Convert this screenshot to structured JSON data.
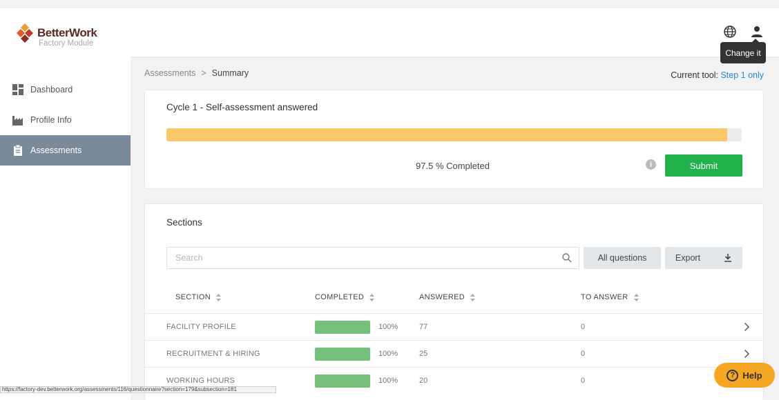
{
  "header": {
    "logo_title": "BetterWork",
    "logo_subtitle": "Factory Module",
    "globe_icon": "globe-icon",
    "user_icon": "user-icon",
    "tooltip": "Change it"
  },
  "sidebar": {
    "items": [
      {
        "label": "Dashboard",
        "icon": "dashboard-icon",
        "active": false
      },
      {
        "label": "Profile Info",
        "icon": "factory-icon",
        "active": false
      },
      {
        "label": "Assessments",
        "icon": "clipboard-icon",
        "active": true
      }
    ]
  },
  "breadcrumb": {
    "parent": "Assessments",
    "separator": ">",
    "current": "Summary"
  },
  "current_tool": {
    "label": "Current tool:",
    "value": "Step 1 only"
  },
  "summary": {
    "title": "Cycle 1 - Self-assessment answered",
    "progress_percent": 97.5,
    "completed_text": "97.5 % Completed",
    "submit_label": "Submit"
  },
  "sections": {
    "title": "Sections",
    "search_placeholder": "Search",
    "all_questions_label": "All questions",
    "export_label": "Export",
    "columns": [
      "SECTION",
      "COMPLETED",
      "ANSWERED",
      "TO ANSWER"
    ],
    "rows": [
      {
        "section": "FACILITY PROFILE",
        "completed_percent": 100,
        "completed_text": "100%",
        "answered": "77",
        "to_answer": "0"
      },
      {
        "section": "RECRUITMENT & HIRING",
        "completed_percent": 100,
        "completed_text": "100%",
        "answered": "25",
        "to_answer": "0"
      },
      {
        "section": "WORKING HOURS",
        "completed_percent": 100,
        "completed_text": "100%",
        "answered": "20",
        "to_answer": "0"
      }
    ]
  },
  "status_url": "https://factory-dev.betterwork.org/assessments/116/questionnaire?section=179&subsection=181",
  "help_label": "Help",
  "colors": {
    "progress": "#fcc96a",
    "section_bar": "#74c07a",
    "submit": "#22b24c",
    "sidebar_active": "#7b8a9a",
    "link": "#2a8ad4",
    "help": "#f5a623"
  }
}
